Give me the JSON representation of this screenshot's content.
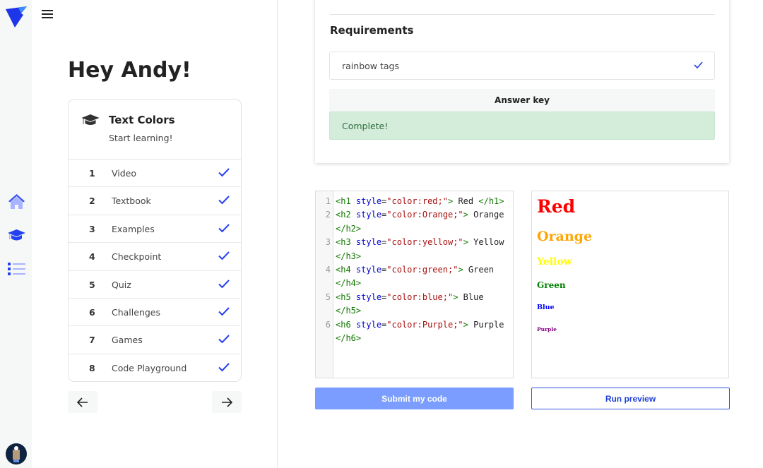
{
  "colors": {
    "accent": "#2540f0",
    "nav_light": "#a9b4ff",
    "success_bg": "#d4edda",
    "submit_bg": "#7a9dff"
  },
  "sidebar": {
    "icons": [
      "logo-icon",
      "home-icon",
      "graduation-cap-icon",
      "list-icon",
      "avatar"
    ]
  },
  "header": {
    "greeting": "Hey Andy!"
  },
  "course": {
    "title": "Text Colors",
    "subtitle": "Start learning!",
    "steps": [
      {
        "num": "1",
        "label": "Video",
        "done": true
      },
      {
        "num": "2",
        "label": "Textbook",
        "done": true
      },
      {
        "num": "3",
        "label": "Examples",
        "done": true
      },
      {
        "num": "4",
        "label": "Checkpoint",
        "done": true
      },
      {
        "num": "5",
        "label": "Quiz",
        "done": true
      },
      {
        "num": "6",
        "label": "Challenges",
        "done": true
      },
      {
        "num": "7",
        "label": "Games",
        "done": true
      },
      {
        "num": "8",
        "label": "Code Playground",
        "done": true
      }
    ]
  },
  "requirements": {
    "title": "Requirements",
    "items": [
      {
        "label": "rainbow tags",
        "done": true
      }
    ],
    "answer_key": "Answer key",
    "status": "Complete!"
  },
  "editor": {
    "lines": [
      {
        "n": "1",
        "tag": "h1",
        "color": "red",
        "text": "Red"
      },
      {
        "n": "2",
        "tag": "h2",
        "color": "Orange",
        "text": "Orange"
      },
      {
        "n": "3",
        "tag": "h3",
        "color": "yellow",
        "text": "Yellow"
      },
      {
        "n": "4",
        "tag": "h4",
        "color": "green",
        "text": "Green"
      },
      {
        "n": "5",
        "tag": "h5",
        "color": "blue",
        "text": "Blue"
      },
      {
        "n": "6",
        "tag": "h6",
        "color": "Purple",
        "text": "Purple"
      }
    ]
  },
  "preview": {
    "items": [
      {
        "text": "Red",
        "color": "#ff0000"
      },
      {
        "text": "Orange",
        "color": "#ffa500"
      },
      {
        "text": "Yellow",
        "color": "#ffff00"
      },
      {
        "text": "Green",
        "color": "#008000"
      },
      {
        "text": "Blue",
        "color": "#0000ff"
      },
      {
        "text": "Purple",
        "color": "#800080"
      }
    ]
  },
  "buttons": {
    "submit": "Submit my code",
    "run": "Run preview"
  }
}
